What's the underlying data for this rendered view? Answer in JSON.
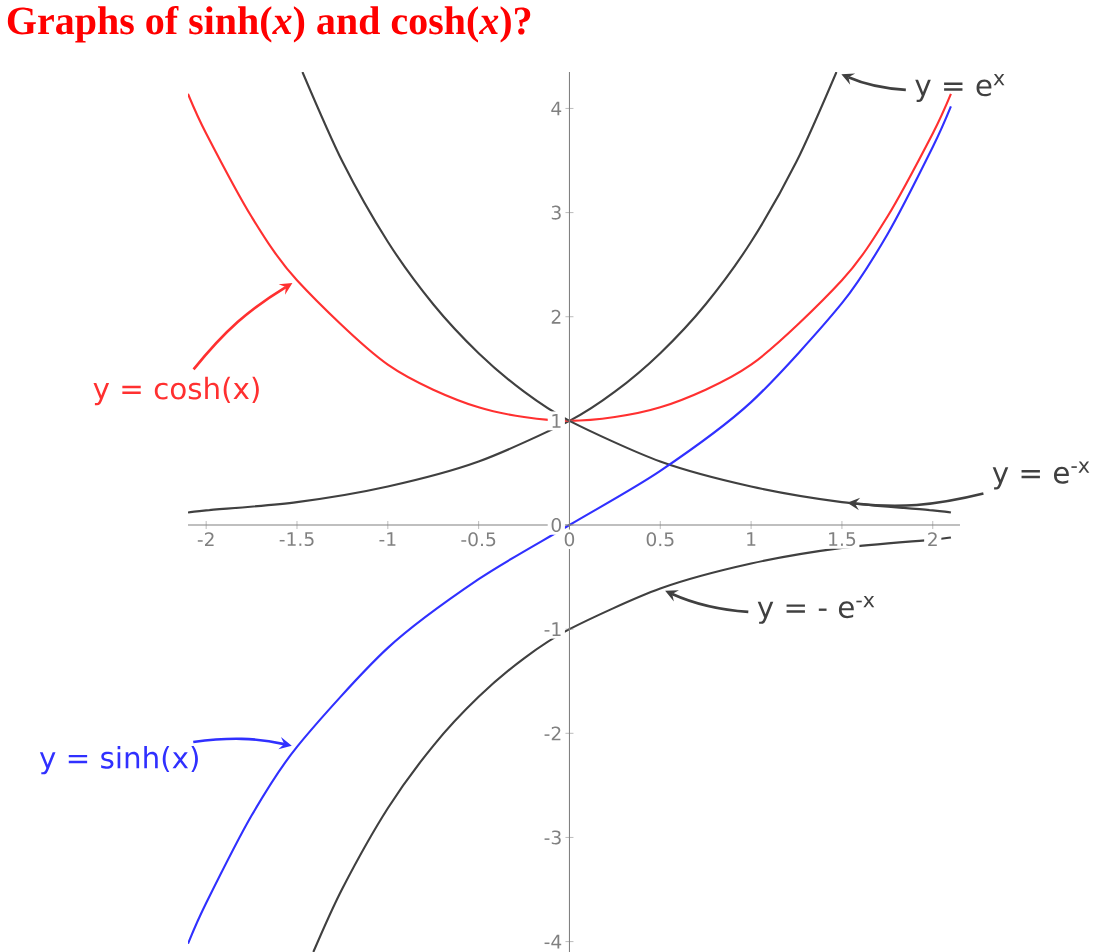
{
  "chart_data": {
    "type": "line",
    "title": "Graphs of sinh(*x*) and cosh(*x*)?",
    "xlim": [
      -2.1,
      2.15
    ],
    "ylim": [
      -4.1,
      4.35
    ],
    "xticks": [
      -2,
      -1.5,
      -1,
      -0.5,
      0,
      0.5,
      1,
      1.5,
      2
    ],
    "yticks": [
      -4,
      -3,
      -2,
      -1,
      0,
      1,
      2,
      3,
      4
    ],
    "grid": false,
    "legend": "right",
    "marker": "none",
    "line_style": "solid",
    "series": [
      {
        "name": "y = e$^{x}$",
        "color": "#404040",
        "x": [
          -2.1,
          -2,
          -1.5,
          -1,
          -0.5,
          0,
          0.25,
          0.5,
          0.75,
          1,
          1.25,
          1.47
        ],
        "values": [
          0.12,
          0.14,
          0.22,
          0.37,
          0.61,
          1,
          1.28,
          1.65,
          2.12,
          2.72,
          3.49,
          4.35
        ]
      },
      {
        "name": "y = cosh(x)",
        "color": "#ff3030",
        "x": [
          -2.1,
          -2,
          -1.75,
          -1.5,
          -1,
          -0.5,
          0,
          0.5,
          1,
          1.5,
          1.75,
          2,
          2.1
        ],
        "values": [
          4.14,
          3.76,
          2.96,
          2.35,
          1.54,
          1.13,
          1,
          1.13,
          1.54,
          2.35,
          2.96,
          3.76,
          4.14
        ]
      },
      {
        "name": "y = e$^{-x}$",
        "color": "#404040",
        "x": [
          -1.47,
          -1.25,
          -1,
          -0.75,
          -0.5,
          -0.25,
          0,
          0.5,
          1,
          1.5,
          2,
          2.1
        ],
        "values": [
          4.35,
          3.49,
          2.72,
          2.12,
          1.65,
          1.28,
          1,
          0.61,
          0.37,
          0.22,
          0.14,
          0.12
        ]
      },
      {
        "name": "y = sinh(x)",
        "color": "#3030ff",
        "x": [
          -2.1,
          -2,
          -1.75,
          -1.5,
          -1,
          -0.5,
          0,
          0.5,
          1,
          1.5,
          1.75,
          2,
          2.1
        ],
        "values": [
          -4.02,
          -3.63,
          -2.79,
          -2.13,
          -1.18,
          -0.52,
          0,
          0.52,
          1.18,
          2.13,
          2.79,
          3.63,
          4.02
        ]
      },
      {
        "name": "y = - e$^{-x}$",
        "color": "#404040",
        "x": [
          -1.41,
          -1.25,
          -1,
          -0.75,
          -0.5,
          -0.25,
          0,
          0.5,
          1,
          1.5,
          2,
          2.1
        ],
        "values": [
          -4.1,
          -3.49,
          -2.72,
          -2.12,
          -1.65,
          -1.28,
          -1,
          -0.61,
          -0.37,
          -0.22,
          -0.14,
          -0.12
        ]
      }
    ]
  }
}
